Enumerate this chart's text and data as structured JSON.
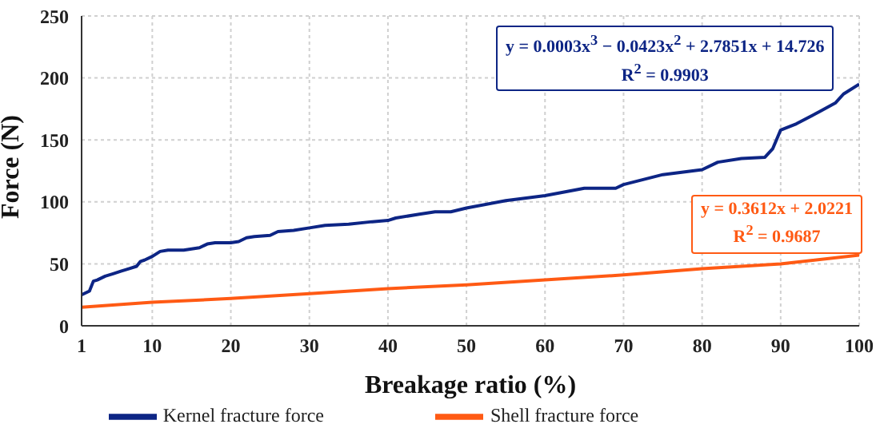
{
  "chart_data": {
    "type": "line",
    "xlabel": "Breakage ratio (%)",
    "ylabel": "Force (N)",
    "xlim": [
      1,
      100
    ],
    "xticks": [
      1,
      10,
      20,
      30,
      40,
      50,
      60,
      70,
      80,
      90,
      100
    ],
    "ylim": [
      0,
      250
    ],
    "yticks": [
      0,
      50,
      100,
      150,
      200,
      250
    ],
    "grid": true,
    "legend": "bottom",
    "marker": "none",
    "line_style": "solid",
    "series": [
      {
        "name": "Kernel fracture force",
        "color": "#0d2585",
        "x": [
          1,
          2,
          2.5,
          3,
          4,
          5,
          6,
          7,
          8,
          8.5,
          9,
          10,
          11,
          12,
          14,
          15,
          16,
          17,
          18,
          20,
          21,
          22,
          23,
          25,
          26,
          28,
          30,
          32,
          35,
          38,
          40,
          41,
          44,
          46,
          48,
          50,
          55,
          60,
          65,
          69,
          70,
          75,
          80,
          82,
          85,
          88,
          89,
          90,
          92,
          95,
          97,
          98,
          100
        ],
        "values": [
          25,
          28,
          36,
          37,
          40,
          42,
          44,
          46,
          48,
          52,
          53,
          56,
          60,
          61,
          61,
          62,
          63,
          66,
          67,
          67,
          68,
          71,
          72,
          73,
          76,
          77,
          79,
          81,
          82,
          84,
          85,
          87,
          90,
          92,
          92,
          95,
          101,
          105,
          111,
          111,
          114,
          122,
          126,
          132,
          135,
          136,
          143,
          158,
          163,
          173,
          180,
          187,
          195
        ]
      },
      {
        "name": "Shell fracture force",
        "color": "#ff5a14",
        "x": [
          1,
          10,
          20,
          30,
          40,
          50,
          60,
          70,
          80,
          90,
          100
        ],
        "values": [
          15,
          19,
          22,
          26,
          30,
          33,
          37,
          41,
          46,
          50,
          57
        ]
      }
    ],
    "annotations": [
      "y = 0.0003x$^{3}$ − 0.0423x$^{2}$ + 2.7851x + 14.726",
      "R$^{2}$ = 0.9903",
      "y = 0.3612x + 2.0221",
      "R$^{2}$ = 0.9687"
    ]
  }
}
